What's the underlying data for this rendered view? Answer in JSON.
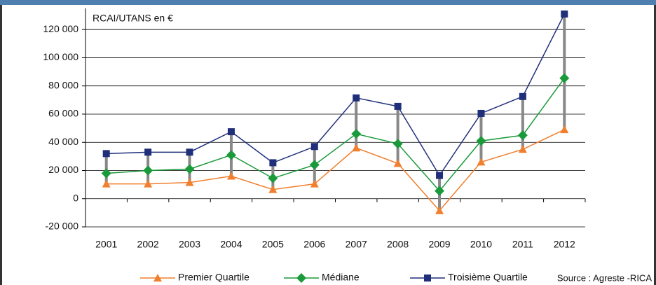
{
  "chart_data": {
    "type": "line",
    "title": "RCAI/UTANS en €",
    "source": "Source : Agreste -RICA",
    "categories": [
      "2001",
      "2002",
      "2003",
      "2004",
      "2005",
      "2006",
      "2007",
      "2008",
      "2009",
      "2010",
      "2011",
      "2012"
    ],
    "series": [
      {
        "name": "Premier Quartile",
        "color": "#f07f2f",
        "marker": "triangle",
        "values": [
          10500,
          10500,
          11500,
          16000,
          6500,
          10500,
          36000,
          25000,
          -8500,
          26000,
          35000,
          49000
        ]
      },
      {
        "name": "Médiane",
        "color": "#1a9a3a",
        "marker": "diamond",
        "values": [
          18000,
          20000,
          21000,
          31000,
          14500,
          24000,
          46000,
          39000,
          5500,
          41000,
          45000,
          85500
        ]
      },
      {
        "name": "Troisième Quartile",
        "color": "#1f2f7a",
        "marker": "square",
        "values": [
          32000,
          33000,
          33000,
          47500,
          25500,
          37000,
          71500,
          65500,
          16500,
          60500,
          72500,
          131000
        ]
      }
    ],
    "ylim": [
      -20000,
      135000
    ],
    "yticks": [
      {
        "value": -20000,
        "label": "-20 000"
      },
      0,
      {
        "value": 20000,
        "label": "20 000"
      },
      {
        "value": 40000,
        "label": "40 000"
      },
      {
        "value": 60000,
        "label": "60 000"
      },
      {
        "value": 80000,
        "label": "80 000"
      },
      {
        "value": 100000,
        "label": "100 000"
      },
      {
        "value": 120000,
        "label": "120 000"
      }
    ],
    "grid": true,
    "hilo_color": "#888888"
  }
}
